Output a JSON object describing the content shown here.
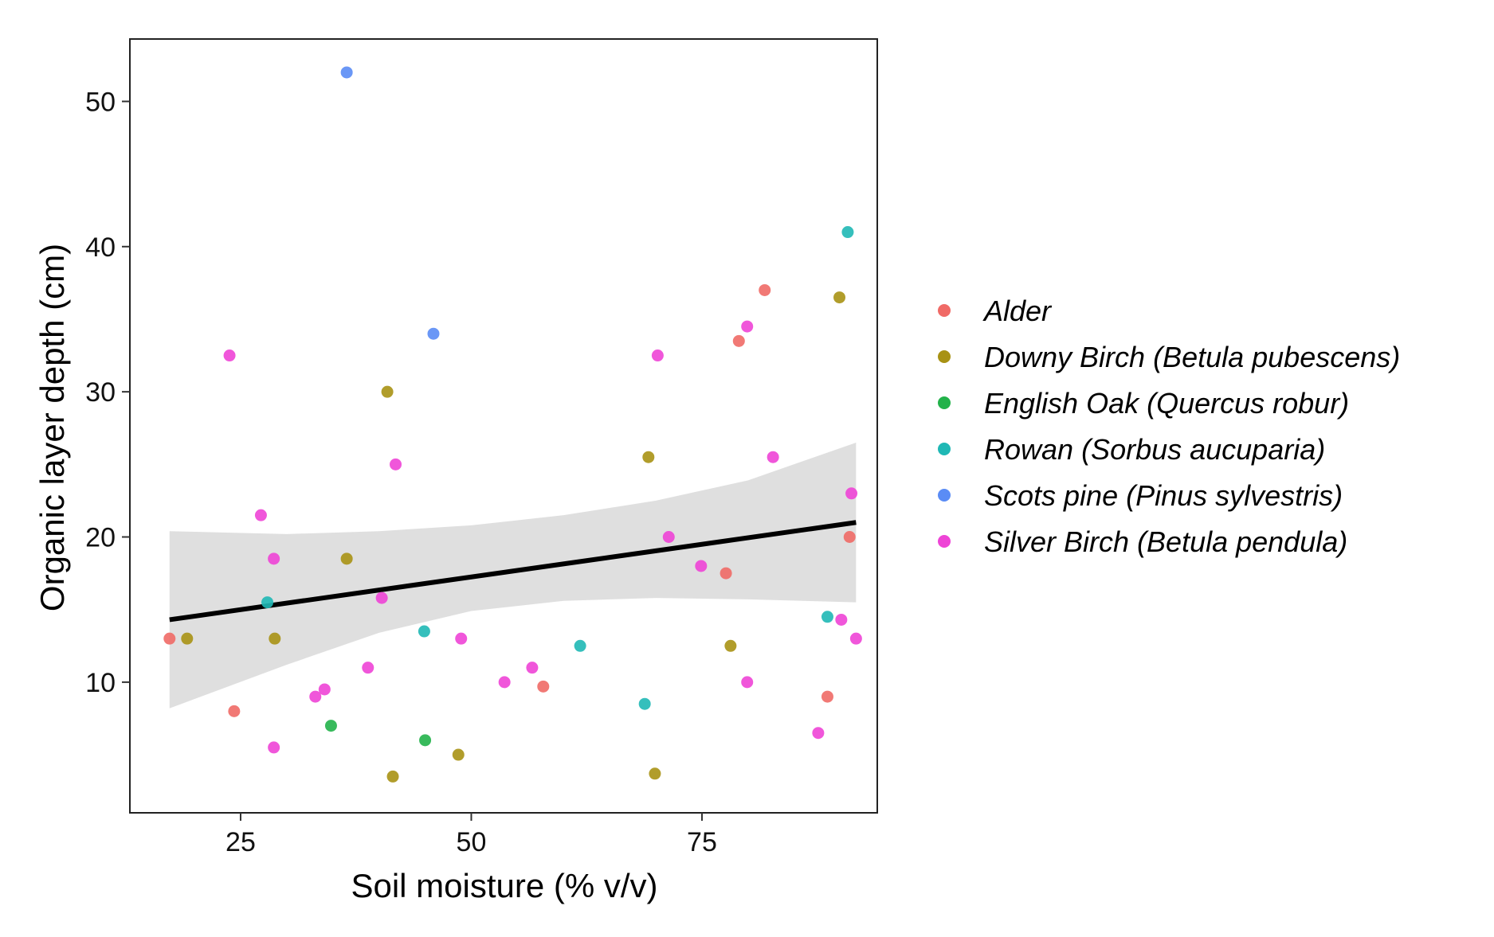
{
  "chart_data": {
    "type": "scatter",
    "xlabel": "Soil moisture (% v/v)",
    "ylabel": "Organic layer depth (cm)",
    "xlim": [
      13,
      94
    ],
    "ylim": [
      1,
      54.3
    ],
    "x_ticks": [
      25,
      50,
      75
    ],
    "y_ticks": [
      10,
      20,
      30,
      40,
      50
    ],
    "grid": false,
    "legend_position": "right",
    "colors": {
      "Alder": "#F06A66",
      "Downy Birch (Betula pubescens)": "#A89214",
      "English Oak (Quercus robur)": "#22B24A",
      "Rowan (Sorbus aucuparia)": "#1FB8B5",
      "Scots pine (Pinus sylvestris)": "#5A8CF5",
      "Silver Birch (Betula pendula)": "#EE44D6"
    },
    "series": [
      {
        "name": "Alder",
        "points": [
          [
            17.3,
            13
          ],
          [
            24.3,
            8
          ],
          [
            57.8,
            9.7
          ],
          [
            77.6,
            17.5
          ],
          [
            79.0,
            33.5
          ],
          [
            81.8,
            37
          ],
          [
            88.6,
            9
          ],
          [
            91.0,
            20
          ]
        ]
      },
      {
        "name": "Downy Birch (Betula pubescens)",
        "points": [
          [
            19.2,
            13
          ],
          [
            28.7,
            13
          ],
          [
            36.5,
            18.5
          ],
          [
            40.9,
            30
          ],
          [
            41.5,
            3.5
          ],
          [
            48.6,
            5
          ],
          [
            69.2,
            25.5
          ],
          [
            69.9,
            3.7
          ],
          [
            78.1,
            12.5
          ],
          [
            89.9,
            36.5
          ]
        ]
      },
      {
        "name": "English Oak (Quercus robur)",
        "points": [
          [
            34.8,
            7
          ],
          [
            45.0,
            6
          ]
        ]
      },
      {
        "name": "Rowan (Sorbus aucuparia)",
        "points": [
          [
            27.9,
            15.5
          ],
          [
            44.9,
            13.5
          ],
          [
            61.8,
            12.5
          ],
          [
            68.8,
            8.5
          ],
          [
            88.6,
            14.5
          ],
          [
            90.8,
            41
          ]
        ]
      },
      {
        "name": "Scots pine (Pinus sylvestris)",
        "points": [
          [
            36.5,
            52
          ],
          [
            45.9,
            34
          ]
        ]
      },
      {
        "name": "Silver Birch (Betula pendula)",
        "points": [
          [
            23.8,
            32.5
          ],
          [
            27.2,
            21.5
          ],
          [
            28.6,
            18.5
          ],
          [
            28.6,
            5.5
          ],
          [
            33.1,
            9
          ],
          [
            34.1,
            9.5
          ],
          [
            38.8,
            11
          ],
          [
            40.3,
            15.8
          ],
          [
            41.8,
            25
          ],
          [
            48.9,
            13
          ],
          [
            53.6,
            10
          ],
          [
            56.6,
            11
          ],
          [
            70.2,
            32.5
          ],
          [
            71.4,
            20
          ],
          [
            74.9,
            18
          ],
          [
            79.9,
            34.5
          ],
          [
            79.9,
            10
          ],
          [
            82.7,
            25.5
          ],
          [
            87.6,
            6.5
          ],
          [
            90.1,
            14.3
          ],
          [
            91.2,
            23
          ],
          [
            91.7,
            13
          ]
        ]
      }
    ],
    "fit": {
      "x": [
        17.3,
        91.7
      ],
      "y": [
        14.3,
        21.0
      ],
      "ci_x": [
        17.3,
        30,
        40,
        50,
        60,
        70,
        80,
        91.7
      ],
      "ci_lower": [
        8.2,
        11.2,
        13.4,
        14.9,
        15.6,
        15.8,
        15.7,
        15.5
      ],
      "ci_upper": [
        20.4,
        20.2,
        20.4,
        20.8,
        21.5,
        22.5,
        23.9,
        26.5
      ]
    }
  }
}
